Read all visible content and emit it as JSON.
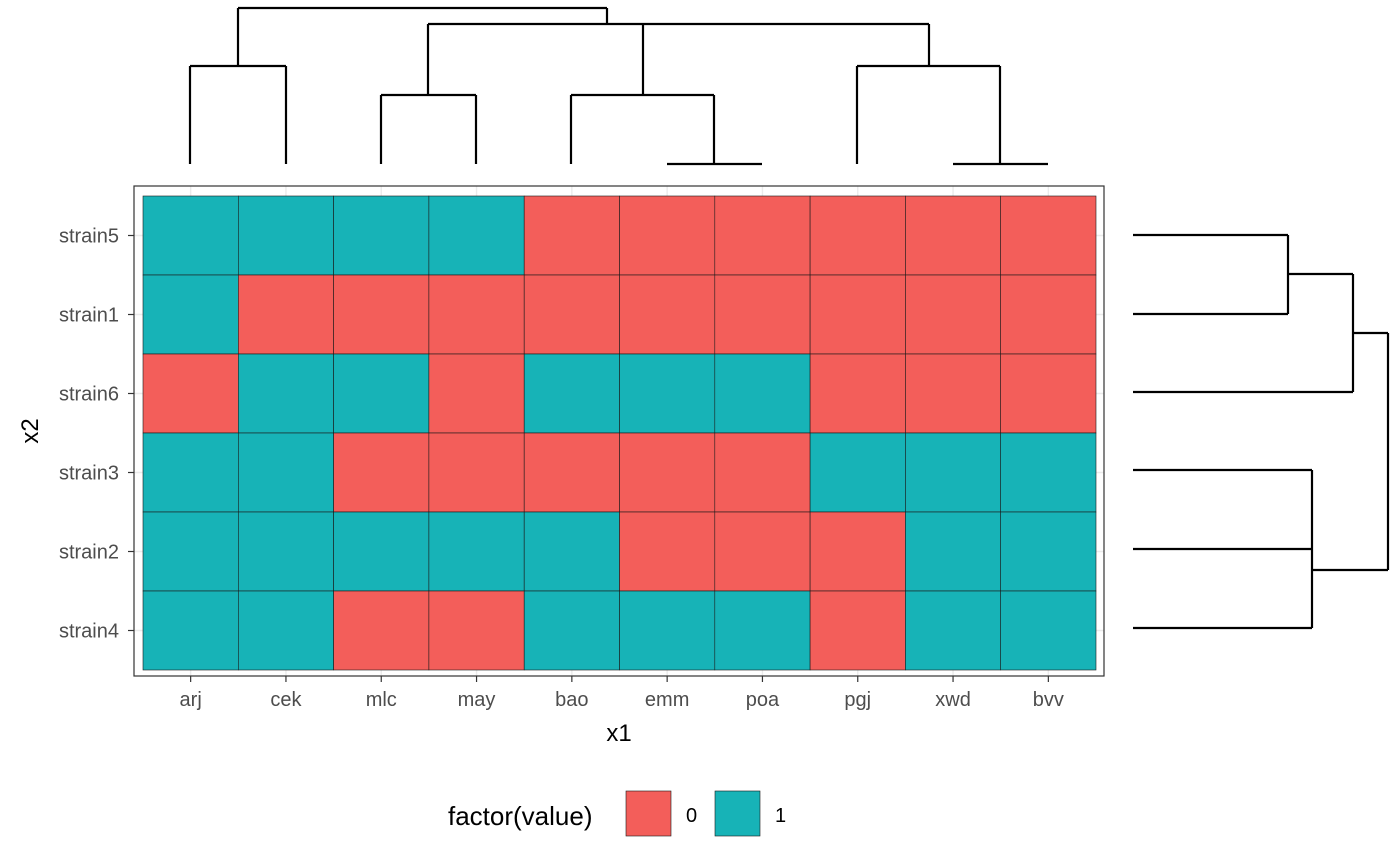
{
  "chart_data": {
    "type": "heatmap",
    "title": "",
    "xlabel": "x1",
    "ylabel": "x2",
    "x": [
      "arj",
      "cek",
      "mlc",
      "may",
      "bao",
      "emm",
      "poa",
      "pgj",
      "xwd",
      "bvv"
    ],
    "y": [
      "strain5",
      "strain1",
      "strain6",
      "strain3",
      "strain2",
      "strain4"
    ],
    "values": [
      [
        1,
        1,
        1,
        1,
        0,
        0,
        0,
        0,
        0,
        0
      ],
      [
        1,
        0,
        0,
        0,
        0,
        0,
        0,
        0,
        0,
        0
      ],
      [
        0,
        1,
        1,
        0,
        1,
        1,
        1,
        0,
        0,
        0
      ],
      [
        1,
        1,
        0,
        0,
        0,
        0,
        0,
        1,
        1,
        1
      ],
      [
        1,
        1,
        1,
        1,
        1,
        0,
        0,
        0,
        1,
        1
      ],
      [
        1,
        1,
        0,
        0,
        1,
        1,
        1,
        0,
        1,
        1
      ]
    ],
    "legend": {
      "title": "factor(value)",
      "position": "bottom",
      "entries": [
        {
          "label": "0",
          "color": "#F35E5A"
        },
        {
          "label": "1",
          "color": "#17B3B7"
        }
      ]
    },
    "grid": true,
    "column_dendrogram": true,
    "row_dendrogram": true
  }
}
